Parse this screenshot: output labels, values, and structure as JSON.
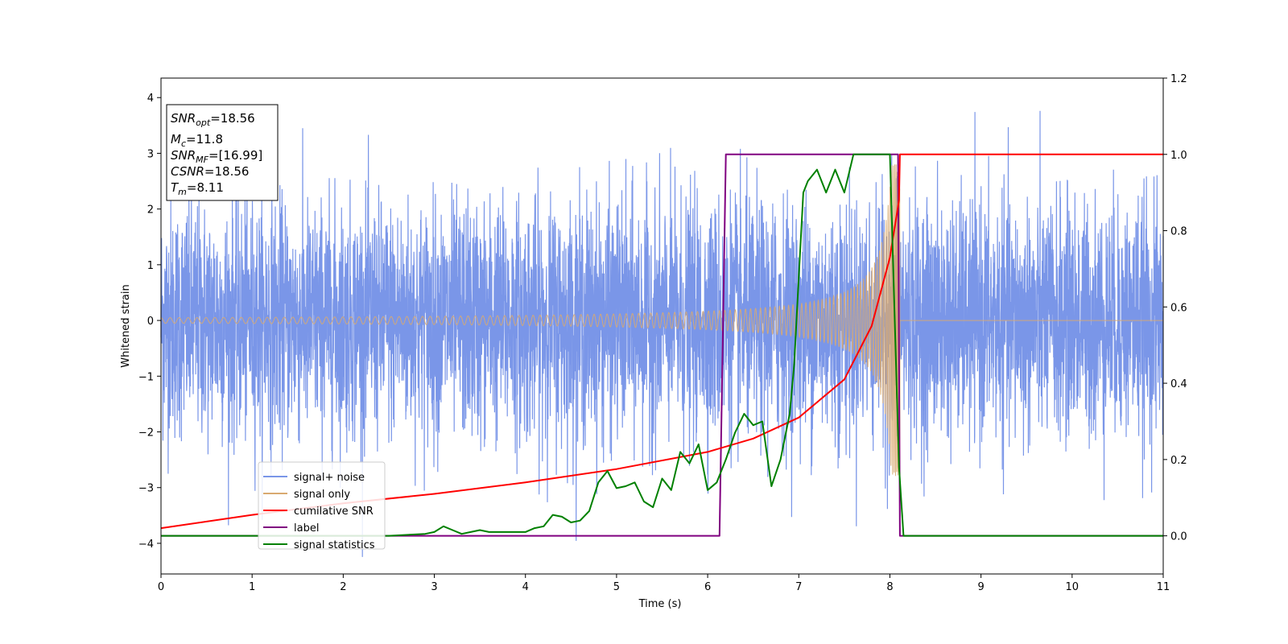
{
  "chart_data": {
    "type": "line",
    "xlabel": "Time (s)",
    "ylabel": "Whitened strain",
    "xlim": [
      0,
      11
    ],
    "ylim_left": [
      -4.55,
      4.35
    ],
    "ylim_right": [
      -0.1,
      1.2
    ],
    "x_ticks": [
      "0",
      "1",
      "2",
      "3",
      "4",
      "5",
      "6",
      "7",
      "8",
      "9",
      "10",
      "11"
    ],
    "y_ticks_left": [
      "4",
      "3",
      "2",
      "1",
      "0",
      "−1",
      "−2",
      "−3",
      "−4"
    ],
    "y_ticks_right": [
      "1.2",
      "1.0",
      "0.8",
      "0.6",
      "0.4",
      "0.2",
      "0.0"
    ],
    "legend_position": "lower-left",
    "annotations": {
      "snr_opt": "18.56",
      "mc": "11.8",
      "snr_mf": "[16.99]",
      "csnr": "18.56",
      "tm": "8.11"
    },
    "series": [
      {
        "name": "signal+ noise",
        "axis": "left",
        "color": "#7a96e8",
        "description_values": "Gaussian noise, approx. ±2.5 typical, peaks to about ±4, over 0–11 s"
      },
      {
        "name": "signal only",
        "axis": "left",
        "color": "#d9aa70",
        "chirp": {
          "t_start": 0,
          "t_merge": 8.11,
          "amp_start": 0.05,
          "amp_peak": 2.8,
          "freq_start_hz": 10
        }
      },
      {
        "name": "cumilative SNR",
        "axis": "right",
        "color": "#ff0000",
        "x": [
          0,
          1,
          2,
          3,
          4,
          5,
          6,
          6.5,
          7,
          7.5,
          7.8,
          8.0,
          8.1,
          8.11,
          11
        ],
        "y": [
          0.02,
          0.055,
          0.085,
          0.11,
          0.14,
          0.175,
          0.22,
          0.255,
          0.31,
          0.41,
          0.55,
          0.73,
          0.88,
          1.0,
          1.0
        ]
      },
      {
        "name": "label",
        "axis": "right",
        "color": "#800080",
        "x": [
          0,
          6.13,
          6.2,
          8.09,
          8.11,
          11
        ],
        "y": [
          0,
          0,
          1,
          1,
          0,
          0
        ]
      },
      {
        "name": "signal statistics",
        "axis": "right",
        "color": "#008000",
        "x": [
          0,
          1,
          2,
          2.5,
          2.9,
          3.0,
          3.1,
          3.2,
          3.3,
          3.4,
          3.5,
          3.6,
          3.8,
          4.0,
          4.1,
          4.2,
          4.3,
          4.4,
          4.5,
          4.6,
          4.7,
          4.8,
          4.9,
          5.0,
          5.1,
          5.2,
          5.3,
          5.4,
          5.5,
          5.6,
          5.7,
          5.8,
          5.9,
          6.0,
          6.1,
          6.2,
          6.3,
          6.4,
          6.5,
          6.6,
          6.7,
          6.8,
          6.9,
          6.95,
          7.0,
          7.05,
          7.1,
          7.2,
          7.3,
          7.4,
          7.5,
          7.6,
          7.7,
          7.8,
          8.0,
          8.1,
          8.15,
          8.2,
          8.3,
          9,
          10,
          11
        ],
        "y": [
          0.0,
          0.0,
          0.0,
          0.0,
          0.005,
          0.01,
          0.025,
          0.015,
          0.005,
          0.01,
          0.015,
          0.01,
          0.01,
          0.01,
          0.02,
          0.025,
          0.055,
          0.05,
          0.035,
          0.04,
          0.065,
          0.14,
          0.17,
          0.125,
          0.13,
          0.14,
          0.09,
          0.075,
          0.15,
          0.12,
          0.22,
          0.19,
          0.24,
          0.12,
          0.14,
          0.2,
          0.27,
          0.32,
          0.29,
          0.3,
          0.13,
          0.2,
          0.32,
          0.45,
          0.68,
          0.9,
          0.93,
          0.96,
          0.9,
          0.96,
          0.9,
          1.0,
          1.0,
          1.0,
          1.0,
          0.18,
          0.0,
          0.0,
          0.0,
          0.0,
          0.0,
          0.0
        ]
      }
    ]
  }
}
